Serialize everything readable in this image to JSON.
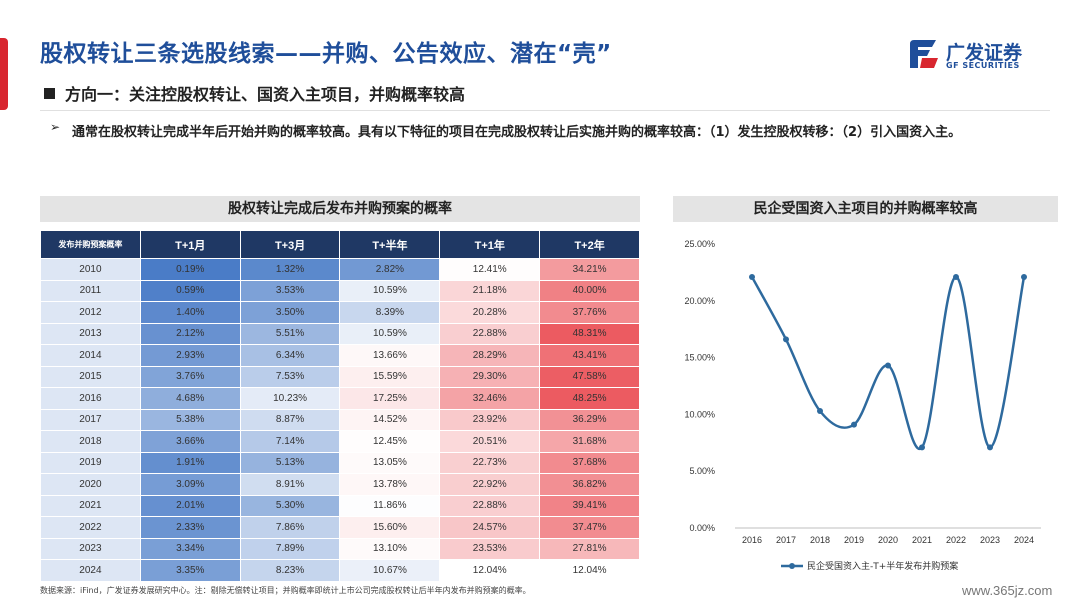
{
  "header": {
    "title": "股权转让三条选股线索——并购、公告效应、潜在“壳”",
    "subtitle": "方向一：关注控股权转让、国资入主项目，并购概率较高",
    "logo_text": "广发证券",
    "logo_sub": "GF SECURITIES"
  },
  "body": {
    "arrow": "➢",
    "text": "通常在股权转让完成半年后开始并购的概率较高。具有以下特征的项目在完成股权转让后实施并购的概率较高：（1）发生控股权转移：（2）引入国资入主。"
  },
  "table_panel": {
    "title": "股权转让完成后发布并购预案的概率",
    "corner_header": "发布并购预案概率",
    "columns": [
      "T+1月",
      "T+3月",
      "T+半年",
      "T+1年",
      "T+2年"
    ],
    "rows": [
      {
        "year": "2010",
        "values": [
          "0.19%",
          "1.32%",
          "2.82%",
          "12.41%",
          "34.21%"
        ]
      },
      {
        "year": "2011",
        "values": [
          "0.59%",
          "3.53%",
          "10.59%",
          "21.18%",
          "40.00%"
        ]
      },
      {
        "year": "2012",
        "values": [
          "1.40%",
          "3.50%",
          "8.39%",
          "20.28%",
          "37.76%"
        ]
      },
      {
        "year": "2013",
        "values": [
          "2.12%",
          "5.51%",
          "10.59%",
          "22.88%",
          "48.31%"
        ]
      },
      {
        "year": "2014",
        "values": [
          "2.93%",
          "6.34%",
          "13.66%",
          "28.29%",
          "43.41%"
        ]
      },
      {
        "year": "2015",
        "values": [
          "3.76%",
          "7.53%",
          "15.59%",
          "29.30%",
          "47.58%"
        ]
      },
      {
        "year": "2016",
        "values": [
          "4.68%",
          "10.23%",
          "17.25%",
          "32.46%",
          "48.25%"
        ]
      },
      {
        "year": "2017",
        "values": [
          "5.38%",
          "8.87%",
          "14.52%",
          "23.92%",
          "36.29%"
        ]
      },
      {
        "year": "2018",
        "values": [
          "3.66%",
          "7.14%",
          "12.45%",
          "20.51%",
          "31.68%"
        ]
      },
      {
        "year": "2019",
        "values": [
          "1.91%",
          "5.13%",
          "13.05%",
          "22.73%",
          "37.68%"
        ]
      },
      {
        "year": "2020",
        "values": [
          "3.09%",
          "8.91%",
          "13.78%",
          "22.92%",
          "36.82%"
        ]
      },
      {
        "year": "2021",
        "values": [
          "2.01%",
          "5.30%",
          "11.86%",
          "22.88%",
          "39.41%"
        ]
      },
      {
        "year": "2022",
        "values": [
          "2.33%",
          "7.86%",
          "15.60%",
          "24.57%",
          "37.47%"
        ]
      },
      {
        "year": "2023",
        "values": [
          "3.34%",
          "7.89%",
          "13.10%",
          "23.53%",
          "27.81%"
        ]
      },
      {
        "year": "2024",
        "values": [
          "3.35%",
          "8.23%",
          "10.67%",
          "12.04%",
          "12.04%"
        ]
      }
    ]
  },
  "chart_panel": {
    "title": "民企受国资入主项目的并购概率较高"
  },
  "chart_data": [
    {
      "type": "table",
      "title": "股权转让完成后发布并购预案的概率",
      "row_header": "发布并购预案概率",
      "columns": [
        "T+1月",
        "T+3月",
        "T+半年",
        "T+1年",
        "T+2年"
      ],
      "rows": [
        "2010",
        "2011",
        "2012",
        "2013",
        "2014",
        "2015",
        "2016",
        "2017",
        "2018",
        "2019",
        "2020",
        "2021",
        "2022",
        "2023",
        "2024"
      ],
      "values": [
        [
          0.19,
          1.32,
          2.82,
          12.41,
          34.21
        ],
        [
          0.59,
          3.53,
          10.59,
          21.18,
          40.0
        ],
        [
          1.4,
          3.5,
          8.39,
          20.28,
          37.76
        ],
        [
          2.12,
          5.51,
          10.59,
          22.88,
          48.31
        ],
        [
          2.93,
          6.34,
          13.66,
          28.29,
          43.41
        ],
        [
          3.76,
          7.53,
          15.59,
          29.3,
          47.58
        ],
        [
          4.68,
          10.23,
          17.25,
          32.46,
          48.25
        ],
        [
          5.38,
          8.87,
          14.52,
          23.92,
          36.29
        ],
        [
          3.66,
          7.14,
          12.45,
          20.51,
          31.68
        ],
        [
          1.91,
          5.13,
          13.05,
          22.73,
          37.68
        ],
        [
          3.09,
          8.91,
          13.78,
          22.92,
          36.82
        ],
        [
          2.01,
          5.3,
          11.86,
          22.88,
          39.41
        ],
        [
          2.33,
          7.86,
          15.6,
          24.57,
          37.47
        ],
        [
          3.34,
          7.89,
          13.1,
          23.53,
          27.81
        ],
        [
          3.35,
          8.23,
          10.67,
          12.04,
          12.04
        ]
      ],
      "colors": {
        "cool": "#4a7cc7",
        "neutral": "#ffffff",
        "warm": "#ec5b61"
      }
    },
    {
      "type": "line",
      "title": "民企受国资入主项目的并购概率较高",
      "x": [
        "2016",
        "2017",
        "2018",
        "2019",
        "2020",
        "2021",
        "2022",
        "2023",
        "2024"
      ],
      "series": [
        {
          "name": "民企受国资入主-T+半年发布并购预案",
          "values": [
            22.1,
            16.6,
            10.3,
            9.1,
            14.3,
            7.1,
            22.1,
            7.1,
            22.1
          ],
          "color": "#2e6a9e"
        }
      ],
      "ylim": [
        0,
        25
      ],
      "yticks": [
        "0.00%",
        "5.00%",
        "10.00%",
        "15.00%",
        "20.00%",
        "25.00%"
      ],
      "legend": "bottom",
      "smooth": true,
      "grid": false
    }
  ],
  "footer": {
    "note": "数据来源：iFind，广发证券发展研究中心。注：剔除无偿转让项目；并购概率即统计上市公司完成股权转让后半年内发布并购预案的概率。",
    "watermark": "www.365jz.com"
  },
  "colors": {
    "title": "#1f4e9a",
    "accent": "#d8262f",
    "table_header": "#1f3864"
  }
}
